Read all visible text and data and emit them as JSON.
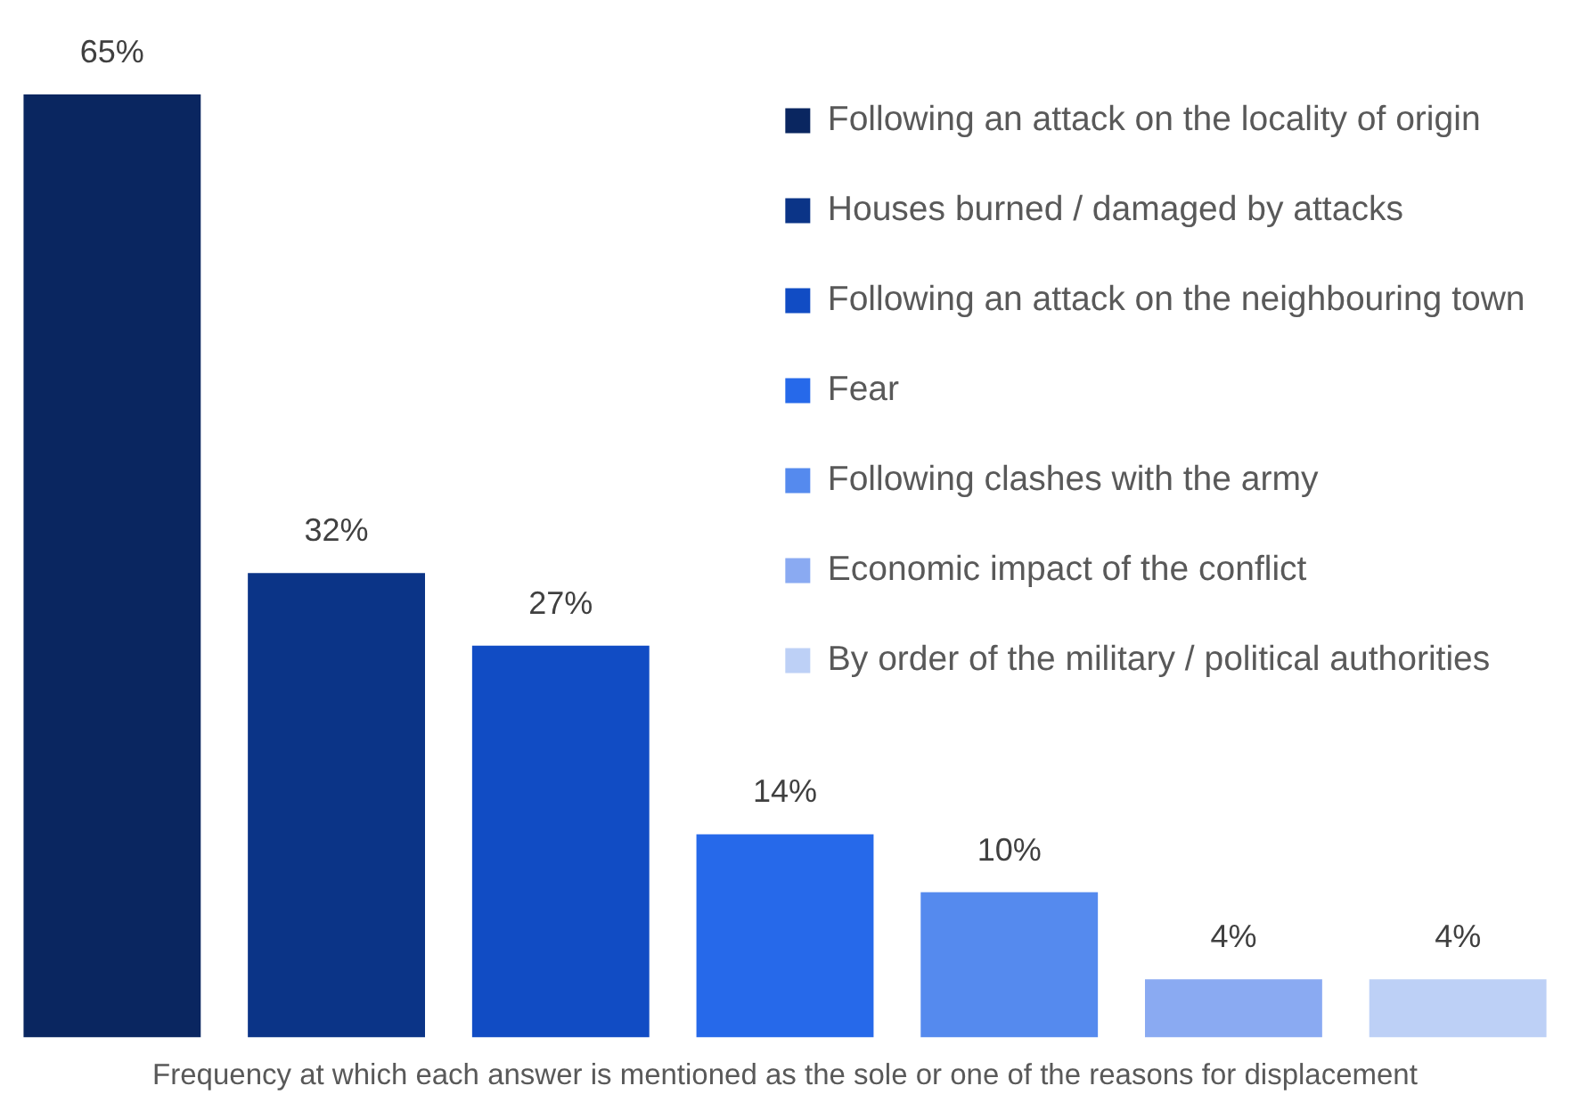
{
  "chart_data": {
    "type": "bar",
    "xlabel": "Frequency at which each answer is mentioned as the sole or one of the reasons for displacement",
    "categories": [
      null,
      null,
      null,
      null,
      null,
      null,
      null
    ],
    "series": [
      {
        "name": "Following an attack on the locality of origin",
        "color": "#0a2660",
        "values": [
          65,
          null,
          null,
          null,
          null,
          null,
          null
        ],
        "value_labels": [
          "65%",
          null,
          null,
          null,
          null,
          null,
          null
        ]
      },
      {
        "name": "Houses burned / damaged by attacks",
        "color": "#0b3487",
        "values": [
          null,
          32,
          null,
          null,
          null,
          null,
          null
        ],
        "value_labels": [
          null,
          "32%",
          null,
          null,
          null,
          null,
          null
        ]
      },
      {
        "name": "Following an attack on the neighbouring town",
        "color": "#114cc4",
        "values": [
          null,
          null,
          27,
          null,
          null,
          null,
          null
        ],
        "value_labels": [
          null,
          null,
          "27%",
          null,
          null,
          null,
          null
        ]
      },
      {
        "name": "Fear",
        "color": "#2669ea",
        "values": [
          null,
          null,
          null,
          14,
          null,
          null,
          null
        ],
        "value_labels": [
          null,
          null,
          null,
          "14%",
          null,
          null,
          null
        ]
      },
      {
        "name": "Following clashes with the army",
        "color": "#558aee",
        "values": [
          null,
          null,
          null,
          null,
          10,
          null,
          null
        ],
        "value_labels": [
          null,
          null,
          null,
          null,
          "10%",
          null,
          null
        ]
      },
      {
        "name": "Economic impact of the conflict",
        "color": "#8aaaf2",
        "values": [
          null,
          null,
          null,
          null,
          null,
          4,
          null
        ],
        "value_labels": [
          null,
          null,
          null,
          null,
          null,
          "4%",
          null
        ]
      },
      {
        "name": "By order of the military / political authorities",
        "color": "#bdd0f6",
        "values": [
          null,
          null,
          null,
          null,
          null,
          null,
          4
        ],
        "value_labels": [
          null,
          null,
          null,
          null,
          null,
          null,
          "4%"
        ]
      }
    ],
    "stacked": true,
    "ylim": [
      0,
      65
    ],
    "tick_labels": false,
    "grid": false,
    "legend": "top right"
  }
}
